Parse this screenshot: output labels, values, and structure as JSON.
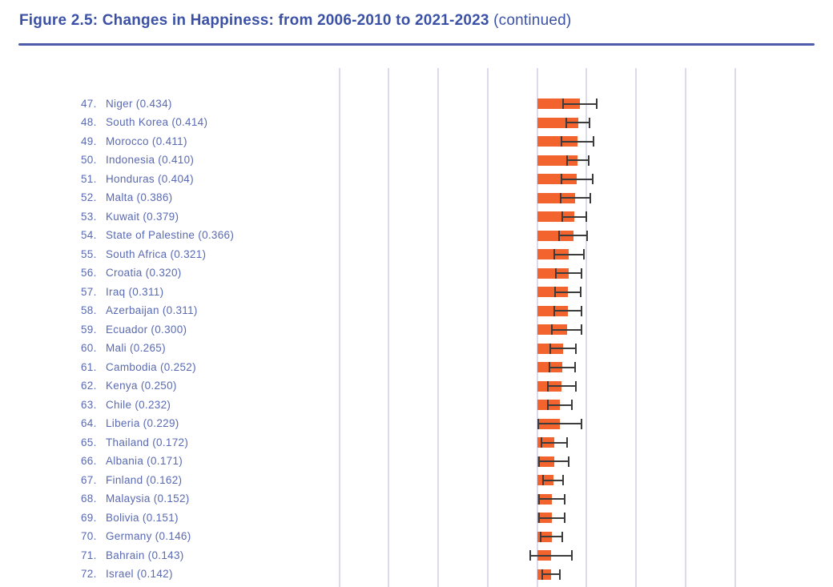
{
  "header": {
    "title_bold": "Figure 2.5: Changes in Happiness: from 2006-2010 to 2021-2023",
    "title_suffix": " (continued)"
  },
  "colors": {
    "title_text": "#3B51A6",
    "rule": "#4C5CAB",
    "label_text": "#5A6AB2",
    "bar": "#F2632E",
    "error_bar": "#3C3C3C",
    "gridline": "#DADCEE"
  },
  "chart_data": {
    "type": "bar",
    "orientation": "horizontal",
    "title": "Figure 2.5: Changes in Happiness: from 2006-2010 to 2021-2023 (continued)",
    "xlabel": "",
    "ylabel": "",
    "xlim": [
      -2,
      2
    ],
    "gridline_interval": 0.5,
    "grid": true,
    "error_bars": true,
    "label_format": "{rank}. {country} ({change})",
    "rows": [
      {
        "rank": 47,
        "country": "Niger",
        "change": "0.434",
        "ci": 0.17
      },
      {
        "rank": 48,
        "country": "South Korea",
        "change": "0.414",
        "ci": 0.12
      },
      {
        "rank": 49,
        "country": "Morocco",
        "change": "0.411",
        "ci": 0.16
      },
      {
        "rank": 50,
        "country": "Indonesia",
        "change": "0.410",
        "ci": 0.11
      },
      {
        "rank": 51,
        "country": "Honduras",
        "change": "0.404",
        "ci": 0.16
      },
      {
        "rank": 52,
        "country": "Malta",
        "change": "0.386",
        "ci": 0.15
      },
      {
        "rank": 53,
        "country": "Kuwait",
        "change": "0.379",
        "ci": 0.12
      },
      {
        "rank": 54,
        "country": "State of Palestine",
        "change": "0.366",
        "ci": 0.14
      },
      {
        "rank": 55,
        "country": "South Africa",
        "change": "0.321",
        "ci": 0.15
      },
      {
        "rank": 56,
        "country": "Croatia",
        "change": "0.320",
        "ci": 0.13
      },
      {
        "rank": 57,
        "country": "Iraq",
        "change": "0.311",
        "ci": 0.13
      },
      {
        "rank": 58,
        "country": "Azerbaijan",
        "change": "0.311",
        "ci": 0.14
      },
      {
        "rank": 59,
        "country": "Ecuador",
        "change": "0.300",
        "ci": 0.15
      },
      {
        "rank": 60,
        "country": "Mali",
        "change": "0.265",
        "ci": 0.13
      },
      {
        "rank": 61,
        "country": "Cambodia",
        "change": "0.252",
        "ci": 0.13
      },
      {
        "rank": 62,
        "country": "Kenya",
        "change": "0.250",
        "ci": 0.14
      },
      {
        "rank": 63,
        "country": "Chile",
        "change": "0.232",
        "ci": 0.12
      },
      {
        "rank": 64,
        "country": "Liberia",
        "change": "0.229",
        "ci": 0.22
      },
      {
        "rank": 65,
        "country": "Thailand",
        "change": "0.172",
        "ci": 0.13
      },
      {
        "rank": 66,
        "country": "Albania",
        "change": "0.171",
        "ci": 0.15
      },
      {
        "rank": 67,
        "country": "Finland",
        "change": "0.162",
        "ci": 0.1
      },
      {
        "rank": 68,
        "country": "Malaysia",
        "change": "0.152",
        "ci": 0.13
      },
      {
        "rank": 69,
        "country": "Bolivia",
        "change": "0.151",
        "ci": 0.13
      },
      {
        "rank": 70,
        "country": "Germany",
        "change": "0.146",
        "ci": 0.11
      },
      {
        "rank": 71,
        "country": "Bahrain",
        "change": "0.143",
        "ci": 0.21
      },
      {
        "rank": 72,
        "country": "Israel",
        "change": "0.142",
        "ci": 0.09
      }
    ]
  }
}
